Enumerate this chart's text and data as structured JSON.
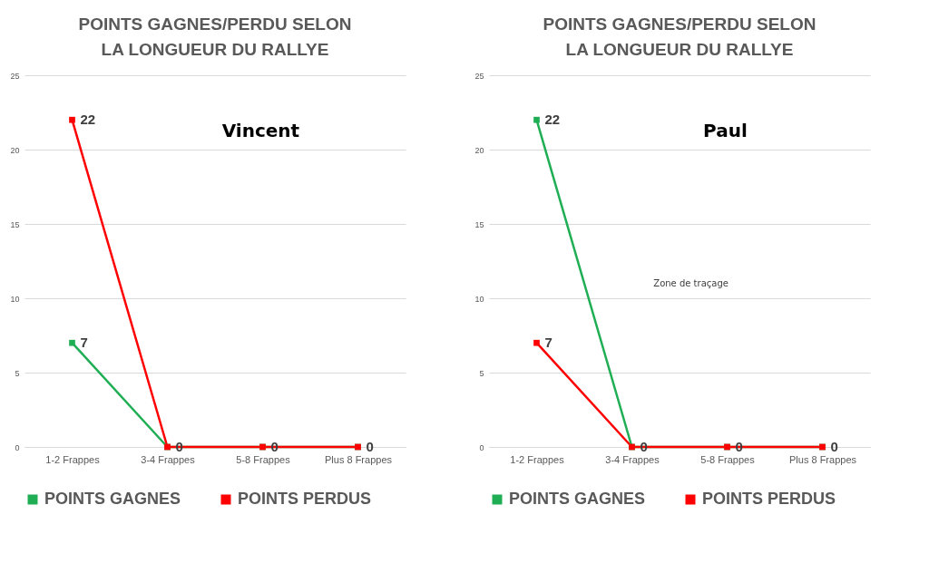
{
  "chart_data": [
    {
      "type": "line",
      "title": "POINTS GAGNES/PERDU SELON LA LONGUEUR DU RALLYE",
      "categories": [
        "1-2 Frappes",
        "3-4 Frappes",
        "5-8 Frappes",
        "Plus 8 Frappes"
      ],
      "series": [
        {
          "name": "POINTS GAGNES",
          "color": "#1fae54",
          "values": [
            7,
            0,
            0,
            0
          ],
          "value_labels": [
            "7",
            null,
            null,
            null
          ]
        },
        {
          "name": "POINTS PERDUS",
          "color": "#ff0000",
          "values": [
            22,
            0,
            0,
            0
          ],
          "value_labels": [
            "22",
            "0",
            "0",
            "0"
          ]
        }
      ],
      "ylim": [
        0,
        25
      ],
      "yticks": [
        0,
        5,
        10,
        15,
        20,
        25
      ],
      "grid": "y",
      "legend": "bottom",
      "marker": "square",
      "annotations": [
        "Vincent"
      ]
    },
    {
      "type": "line",
      "title": "POINTS GAGNES/PERDU SELON LA LONGUEUR DU RALLYE",
      "categories": [
        "1-2 Frappes",
        "3-4 Frappes",
        "5-8 Frappes",
        "Plus 8 Frappes"
      ],
      "series": [
        {
          "name": "POINTS GAGNES",
          "color": "#1fae54",
          "values": [
            22,
            0,
            0,
            0
          ],
          "value_labels": [
            "22",
            null,
            null,
            null
          ]
        },
        {
          "name": "POINTS PERDUS",
          "color": "#ff0000",
          "values": [
            7,
            0,
            0,
            0
          ],
          "value_labels": [
            "7",
            "0",
            "0",
            "0"
          ]
        }
      ],
      "ylim": [
        0,
        25
      ],
      "yticks": [
        0,
        5,
        10,
        15,
        20,
        25
      ],
      "grid": "y",
      "legend": "bottom",
      "marker": "square",
      "annotations": [
        "Paul",
        "Zone de traçage"
      ]
    }
  ]
}
